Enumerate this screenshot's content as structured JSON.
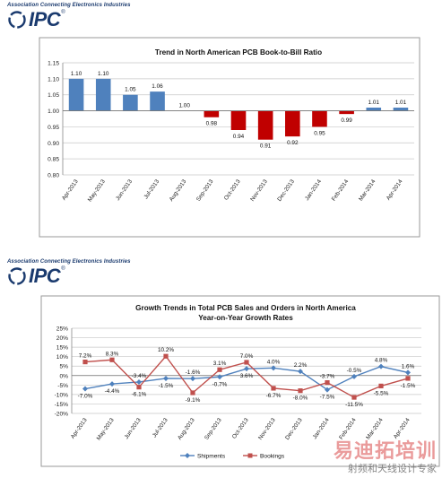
{
  "brand": {
    "tagline": "Association Connecting Electronics Industries",
    "logo_text": "IPC",
    "trademark": "®"
  },
  "watermark": {
    "main": "易迪拓培训",
    "sub": "射频和天线设计专家"
  },
  "colors": {
    "bar_above": "#4f81bd",
    "bar_below": "#c00000",
    "shipments": "#4f81bd",
    "bookings": "#c0504d",
    "brand": "#1a3a6e"
  },
  "chart_data": [
    {
      "type": "bar",
      "title": "Trend in North American PCB Book-to-Bill Ratio",
      "categories": [
        "Apr-2013",
        "May-2013",
        "Jun-2013",
        "Jul-2013",
        "Aug-2013",
        "Sep-2013",
        "Oct-2013",
        "Nov-2013",
        "Dec-2013",
        "Jan-2014",
        "Feb-2014",
        "Mar-2014",
        "Apr-2014"
      ],
      "values": [
        1.1,
        1.1,
        1.05,
        1.06,
        1.0,
        0.98,
        0.94,
        0.91,
        0.92,
        0.95,
        0.99,
        1.01,
        1.01
      ],
      "data_labels": [
        "1.10",
        "1.10",
        "1.05",
        "1.06",
        "1.00",
        "0.98",
        "0.94",
        "0.91",
        "0.92",
        "0.95",
        "0.99",
        "1.01",
        "1.01"
      ],
      "baseline": 1.0,
      "ylim": [
        0.8,
        1.15
      ],
      "yticks": [
        "0.80",
        "0.85",
        "0.90",
        "0.95",
        "1.00",
        "1.05",
        "1.10",
        "1.15"
      ],
      "grid": true
    },
    {
      "type": "line",
      "title": "Growth Trends in Total PCB Sales and Orders in North America",
      "subtitle": "Year-on-Year Growth Rates",
      "categories": [
        "Apr-2013",
        "May-2013",
        "Jun-2013",
        "Jul-2013",
        "Aug-2013",
        "Sep-2013",
        "Oct-2013",
        "Nov-2013",
        "Dec-2013",
        "Jan-2014",
        "Feb-2014",
        "Mar-2014",
        "Apr-2014"
      ],
      "series": [
        {
          "name": "Shipments",
          "values": [
            -7.0,
            -4.4,
            -3.4,
            -1.5,
            -1.6,
            -0.7,
            3.6,
            4.0,
            2.2,
            -7.5,
            -0.5,
            4.8,
            1.6
          ],
          "labels": [
            "-7.0%",
            "-4.4%",
            "-3.4%",
            "-1.5%",
            "-1.6%",
            "-0.7%",
            "3.6%",
            "4.0%",
            "2.2%",
            "-7.5%",
            "-0.5%",
            "4.8%",
            "1.6%"
          ]
        },
        {
          "name": "Bookings",
          "values": [
            7.2,
            8.3,
            -6.1,
            10.2,
            -9.1,
            3.1,
            7.0,
            -6.7,
            -8.0,
            -3.7,
            -11.5,
            -5.5,
            -1.5
          ],
          "labels": [
            "7.2%",
            "8.3%",
            "-6.1%",
            "10.2%",
            "-9.1%",
            "3.1%",
            "7.0%",
            "-6.7%",
            "-8.0%",
            "-3.7%",
            "-11.5%",
            "-5.5%",
            "-1.5%"
          ]
        }
      ],
      "ylim": [
        -20,
        25
      ],
      "yticks": [
        "-20%",
        "-15%",
        "-10%",
        "-5%",
        "0%",
        "5%",
        "10%",
        "15%",
        "20%",
        "25%"
      ],
      "legend": "bottom",
      "grid": true
    }
  ]
}
